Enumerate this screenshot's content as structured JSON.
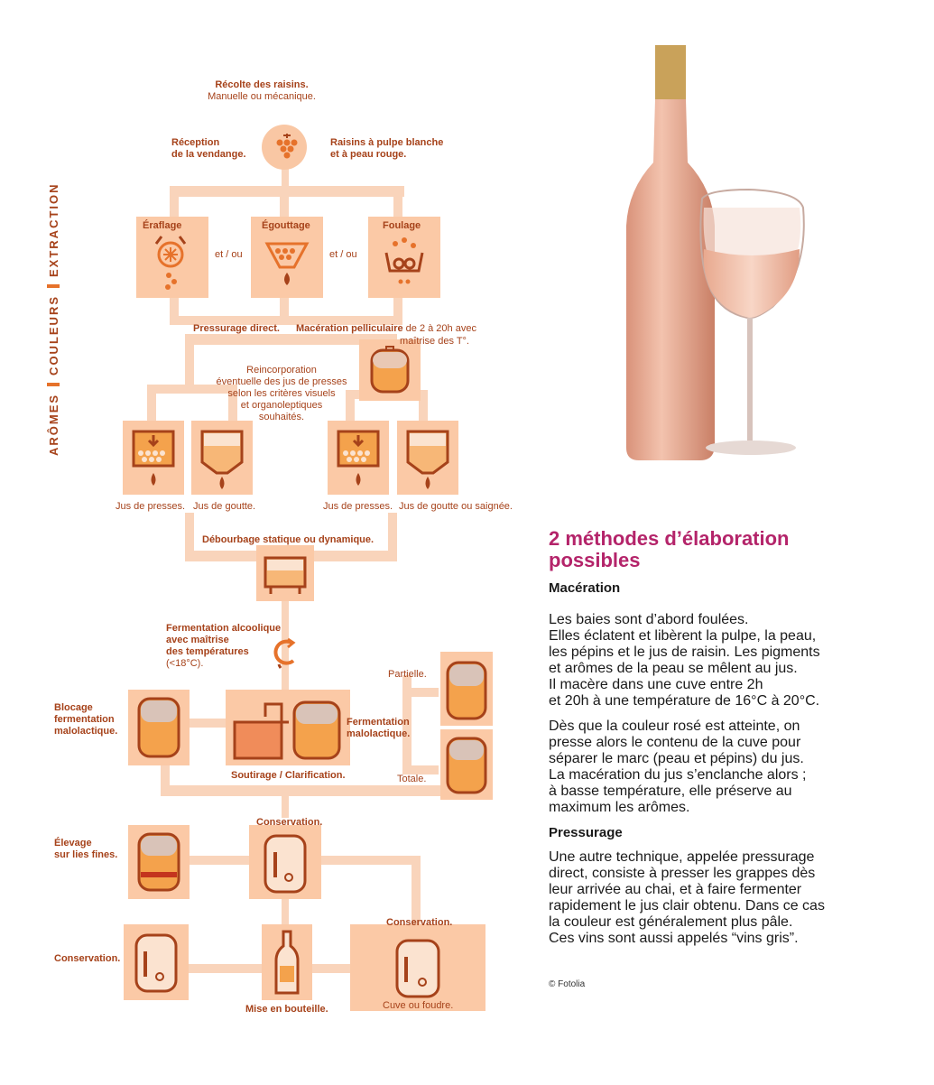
{
  "diagram": {
    "side_label": {
      "part1": "ARÔMES",
      "part2": "COULEURS",
      "part3": "EXTRACTION"
    },
    "harvest": {
      "title": "Récolte des raisins.",
      "subtitle": "Manuelle ou mécanique."
    },
    "reception": {
      "line1": "Réception",
      "line2": "de la vendange."
    },
    "grapes_type": {
      "line1": "Raisins à pulpe blanche",
      "line2": "et à peau rouge."
    },
    "eraflage": "Éraflage",
    "egouttage": "Égouttage",
    "foulage": "Foulage",
    "et_ou_1": "et / ou",
    "et_ou_2": "et / ou",
    "pressurage_direct": "Pressurage direct.",
    "maceration": {
      "bold": "Macération pelliculaire",
      "rest": " de 2 à 20h avec",
      "line2": "maîtrise des T°."
    },
    "reincorporation": [
      "Reincorporation",
      "éventuelle des jus de presses",
      "selon les critères visuels",
      "et organoleptiques",
      "souhaités."
    ],
    "jus_presses_1": "Jus de presses.",
    "jus_goutte_1": "Jus de goutte.",
    "jus_presses_2": "Jus de presses.",
    "jus_goutte_2": "Jus de goutte ou saignée.",
    "debourbage": "Débourbage statique ou dynamique.",
    "fermentation_alc": [
      "Fermentation alcoolique",
      "avec maîtrise",
      "des températures",
      "(<18°C)."
    ],
    "partielle": "Partielle.",
    "totale": "Totale.",
    "blocage": [
      "Blocage",
      "fermentation",
      "malolactique."
    ],
    "fermentation_malo": [
      "Fermentation",
      "malolactique."
    ],
    "soutirage": "Soutirage / Clarification.",
    "conservation_1": "Conservation.",
    "elevage": [
      "Élevage",
      "sur lies fines."
    ],
    "conservation_2": "Conservation.",
    "conservation_3": "Conservation.",
    "mise_en_bouteille": "Mise en bouteille.",
    "cuve_foudre": "Cuve ou foudre."
  },
  "article": {
    "heading_line1": "2 méthodes d’élaboration",
    "heading_line2": "possibles",
    "maceration_title": "Macération",
    "maceration_p1": [
      "Les baies sont d’abord foulées.",
      "Elles éclatent et libèrent la pulpe, la peau,",
      "les pépins et le jus de raisin. Les pigments",
      "et arômes de la peau se mêlent au jus.",
      "Il macère dans une cuve entre 2h",
      "et 20h à une température de 16°C à 20°C."
    ],
    "maceration_p2": [
      "Dès que la couleur rosé est atteinte, on",
      "presse alors le contenu de la cuve pour",
      "séparer le marc (peau et pépins) du jus.",
      "La macération du jus s’enclanche alors ;",
      "à basse température, elle préserve au",
      "maximum les arômes."
    ],
    "pressurage_title": "Pressurage",
    "pressurage_p": [
      "Une autre technique, appelée pressurage",
      "direct, consiste à presser les grappes dès",
      "leur arrivée au chai, et à faire fermenter",
      "rapidement le jus clair obtenu. Dans ce cas",
      "la couleur est généralement plus pâle.",
      "Ces vins sont aussi appelés “vins gris”."
    ],
    "credit": "© Fotolia"
  },
  "colors": {
    "dark": "#a6421a",
    "accent": "#e6722b",
    "band": "#f9d4bb",
    "box": "#fbc9a6",
    "wine": "#f4a24c",
    "heading": "#b4246a"
  }
}
